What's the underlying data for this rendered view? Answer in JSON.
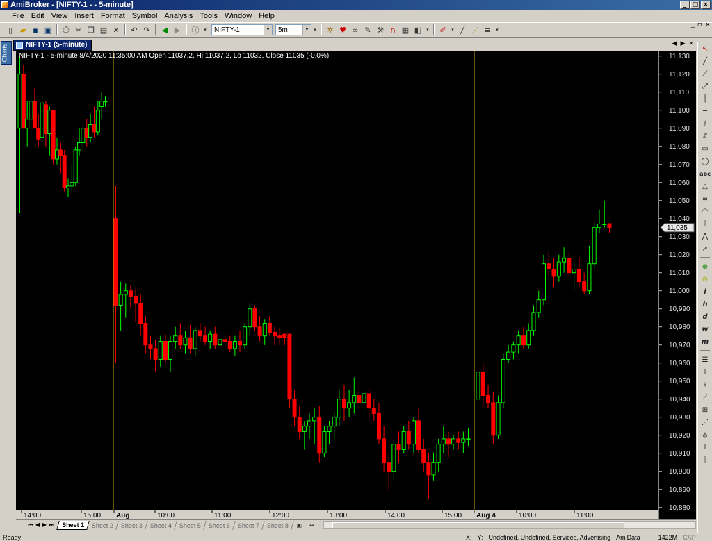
{
  "window": {
    "title": "AmiBroker - [NIFTY-1 -  - 5-minute]"
  },
  "menu": [
    "File",
    "Edit",
    "View",
    "Insert",
    "Format",
    "Symbol",
    "Analysis",
    "Tools",
    "Window",
    "Help"
  ],
  "toolbar": {
    "symbol": "NIFTY-1",
    "interval": "5m"
  },
  "left_dock": {
    "label": "Charts"
  },
  "chart_window": {
    "tab_label": "NIFTY-1 (5-minute)"
  },
  "chart_info": "NIFTY-1 - 5-minute 8/4/2020 11:35:00 AM Open 11037.2, Hi 11037.2, Lo 11032, Close 11035 (-0.0%)",
  "chart_data": {
    "type": "candlestick",
    "y_ticks": [
      11130,
      11120,
      11110,
      11100,
      11090,
      11080,
      11070,
      11060,
      11050,
      11040,
      11030,
      11020,
      11010,
      11000,
      10990,
      10980,
      10970,
      10960,
      10950,
      10940,
      10930,
      10920,
      10910,
      10900,
      10890,
      10880
    ],
    "y_tick_labels": [
      "11,130",
      "11,120",
      "11,110",
      "11,100",
      "11,090",
      "11,080",
      "11,070",
      "11,060",
      "11,050",
      "11,040",
      "11,030",
      "11,020",
      "11,010",
      "11,000",
      "10,990",
      "10,980",
      "10,970",
      "10,960",
      "10,950",
      "10,940",
      "10,930",
      "10,920",
      "10,910",
      "10,900",
      "10,890",
      "10,880"
    ],
    "ylim": [
      10877.5,
      11132.5
    ],
    "x_labels": [
      "14:00",
      "15:00",
      "Aug",
      "10:00",
      "11:00",
      "12:00",
      "13:00",
      "14:00",
      "15:00",
      "Aug 4",
      "10:00",
      "11:00"
    ],
    "last_price_label": "11,035",
    "last_price": 11035,
    "colors": {
      "up": "#00ff00",
      "down": "#ff0000",
      "separator": "#c8a000",
      "background": "#000000"
    },
    "candles": [
      [
        11090,
        11130,
        11043,
        11120
      ],
      [
        11120,
        11125,
        11090,
        11090
      ],
      [
        11090,
        11105,
        11080,
        11095
      ],
      [
        11095,
        11110,
        11085,
        11105
      ],
      [
        11105,
        11112,
        11090,
        11090
      ],
      [
        11090,
        11098,
        11080,
        11084
      ],
      [
        11085,
        11108,
        11082,
        11104
      ],
      [
        11103,
        11105,
        11080,
        11087
      ],
      [
        11087,
        11102,
        11075,
        11100
      ],
      [
        11100,
        11100,
        11070,
        11073
      ],
      [
        11073,
        11085,
        11070,
        11078
      ],
      [
        11078,
        11082,
        11065,
        11075
      ],
      [
        11075,
        11078,
        11055,
        11057
      ],
      [
        11057,
        11062,
        11052,
        11058
      ],
      [
        11058,
        11070,
        11055,
        11060
      ],
      [
        11060,
        11080,
        11058,
        11078
      ],
      [
        11078,
        11090,
        11075,
        11082
      ],
      [
        11082,
        11092,
        11078,
        11090
      ],
      [
        11090,
        11095,
        11080,
        11085
      ],
      [
        11085,
        11098,
        11082,
        11092
      ],
      [
        11092,
        11102,
        11085,
        11088
      ],
      [
        11088,
        11105,
        11086,
        11100
      ],
      [
        11102,
        11110,
        11095,
        11105
      ],
      [
        11105,
        11108,
        11102,
        11105
      ],
      [
        11040,
        11058,
        10960,
        10992
      ],
      [
        10992,
        11005,
        10978,
        10998
      ],
      [
        10998,
        11004,
        10985,
        11000
      ],
      [
        11000,
        11003,
        10990,
        10997
      ],
      [
        10997,
        11001,
        10983,
        10993
      ],
      [
        10993,
        10998,
        10975,
        10982
      ],
      [
        10982,
        10986,
        10965,
        10970
      ],
      [
        10970,
        10975,
        10962,
        10968
      ],
      [
        10968,
        10973,
        10955,
        10962
      ],
      [
        10962,
        10975,
        10958,
        10972
      ],
      [
        10972,
        10976,
        10960,
        10962
      ],
      [
        10962,
        10975,
        10955,
        10972
      ],
      [
        10972,
        10980,
        10968,
        10975
      ],
      [
        10975,
        10982,
        10968,
        10970
      ],
      [
        10970,
        10978,
        10965,
        10974
      ],
      [
        10974,
        10981,
        10965,
        10968
      ],
      [
        10968,
        10980,
        10964,
        10978
      ],
      [
        10978,
        10982,
        10972,
        10975
      ],
      [
        10975,
        10980,
        10970,
        10972
      ],
      [
        10972,
        10978,
        10968,
        10976
      ],
      [
        10976,
        10980,
        10968,
        10970
      ],
      [
        10970,
        10975,
        10966,
        10973
      ],
      [
        10973,
        10976,
        10968,
        10972
      ],
      [
        10972,
        10975,
        10966,
        10968
      ],
      [
        10968,
        10975,
        10964,
        10972
      ],
      [
        10972,
        10978,
        10966,
        10970
      ],
      [
        10970,
        10982,
        10968,
        10980
      ],
      [
        10980,
        10993,
        10975,
        10990
      ],
      [
        10990,
        10992,
        10978,
        10980
      ],
      [
        10980,
        10986,
        10972,
        10975
      ],
      [
        10975,
        10984,
        10970,
        10982
      ],
      [
        10982,
        10986,
        10975,
        10977
      ],
      [
        10977,
        10980,
        10970,
        10975
      ],
      [
        10975,
        10979,
        10970,
        10974
      ],
      [
        10976,
        10976,
        10970,
        10974
      ],
      [
        10976,
        10976,
        10935,
        10940
      ],
      [
        10940,
        10945,
        10925,
        10930
      ],
      [
        10930,
        10936,
        10918,
        10922
      ],
      [
        10922,
        10928,
        10912,
        10925
      ],
      [
        10925,
        10932,
        10918,
        10928
      ],
      [
        10928,
        10935,
        10915,
        10930
      ],
      [
        10930,
        10936,
        10905,
        10910
      ],
      [
        10910,
        10925,
        10908,
        10922
      ],
      [
        10922,
        10928,
        10915,
        10925
      ],
      [
        10925,
        10933,
        10918,
        10930
      ],
      [
        10930,
        10945,
        10925,
        10940
      ],
      [
        10940,
        10948,
        10928,
        10935
      ],
      [
        10935,
        10945,
        10930,
        10938
      ],
      [
        10938,
        10952,
        10932,
        10942
      ],
      [
        10942,
        10948,
        10935,
        10938
      ],
      [
        10938,
        10945,
        10930,
        10943
      ],
      [
        10943,
        10946,
        10930,
        10935
      ],
      [
        10935,
        10940,
        10928,
        10932
      ],
      [
        10932,
        10938,
        10915,
        10918
      ],
      [
        10918,
        10925,
        10900,
        10905
      ],
      [
        10905,
        10910,
        10890,
        10900
      ],
      [
        10900,
        10918,
        10895,
        10915
      ],
      [
        10915,
        10922,
        10905,
        10912
      ],
      [
        10912,
        10925,
        10910,
        10922
      ],
      [
        10922,
        10928,
        10912,
        10915
      ],
      [
        10915,
        10930,
        10910,
        10928
      ],
      [
        10928,
        10935,
        10910,
        10912
      ],
      [
        10912,
        10918,
        10900,
        10905
      ],
      [
        10905,
        10910,
        10885,
        10898
      ],
      [
        10898,
        10910,
        10895,
        10905
      ],
      [
        10905,
        10918,
        10900,
        10915
      ],
      [
        10915,
        10925,
        10910,
        10918
      ],
      [
        10918,
        10922,
        10908,
        10915
      ],
      [
        10915,
        10920,
        10912,
        10918
      ],
      [
        10918,
        10922,
        10912,
        10916
      ],
      [
        10916,
        10922,
        10910,
        10918
      ],
      [
        10918,
        10924,
        10914,
        10918
      ],
      [
        10940,
        10960,
        10925,
        10955
      ],
      [
        10955,
        10960,
        10935,
        10942
      ],
      [
        10942,
        10948,
        10935,
        10938
      ],
      [
        10938,
        10944,
        10915,
        10920
      ],
      [
        10920,
        10942,
        10918,
        10938
      ],
      [
        10938,
        10965,
        10935,
        10962
      ],
      [
        10962,
        10970,
        10960,
        10966
      ],
      [
        10966,
        10972,
        10962,
        10970
      ],
      [
        10970,
        10978,
        10965,
        10975
      ],
      [
        10975,
        10980,
        10968,
        10970
      ],
      [
        10970,
        10982,
        10968,
        10978
      ],
      [
        10978,
        10992,
        10975,
        10988
      ],
      [
        10988,
        11000,
        10985,
        10995
      ],
      [
        10995,
        11020,
        10992,
        11015
      ],
      [
        11015,
        11022,
        11008,
        11012
      ],
      [
        11012,
        11018,
        11002,
        11008
      ],
      [
        11008,
        11020,
        11005,
        11016
      ],
      [
        11016,
        11024,
        11010,
        11018
      ],
      [
        11018,
        11022,
        11008,
        11010
      ],
      [
        11010,
        11016,
        11000,
        11012
      ],
      [
        11012,
        11018,
        11002,
        11005
      ],
      [
        11005,
        11010,
        10998,
        11000
      ],
      [
        11000,
        11025,
        10998,
        11015
      ],
      [
        11015,
        11038,
        11012,
        11035
      ],
      [
        11035,
        11045,
        11032,
        11037
      ],
      [
        11037,
        11050,
        11035,
        11037
      ],
      [
        11037.2,
        11037.2,
        11032,
        11035
      ]
    ]
  },
  "sheets": [
    "Sheet 1",
    "Sheet 2",
    "Sheet 3",
    "Sheet 4",
    "Sheet 5",
    "Sheet 6",
    "Sheet 7",
    "Sheet 8"
  ],
  "status": {
    "left": "Ready",
    "x": "X:",
    "y": "Y:",
    "info": "Undefined, Undefined, Services, Advertising",
    "source": "AmiData",
    "mem": "1422M",
    "caps": "CAP"
  }
}
